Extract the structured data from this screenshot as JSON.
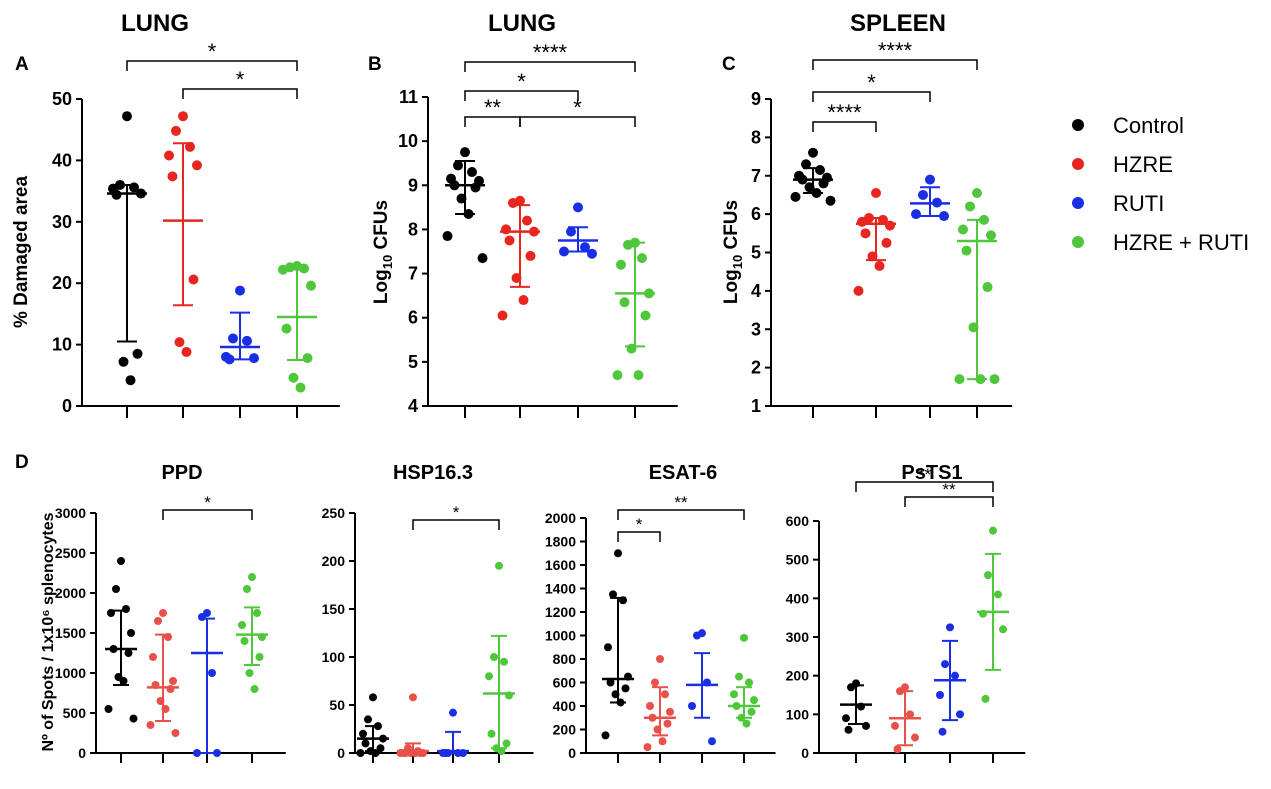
{
  "figure": {
    "panel_labels": [
      "A",
      "B",
      "C",
      "D"
    ]
  },
  "legend": [
    {
      "label": "Control",
      "color": "#000000"
    },
    {
      "label": "HZRE",
      "color": "#e8261f"
    },
    {
      "label": "RUTI",
      "color": "#1a2ee6"
    },
    {
      "label": "HZRE + RUTI",
      "color": "#4ec83a"
    }
  ],
  "chart_data": [
    {
      "id": "A",
      "type": "scatter",
      "title": "LUNG",
      "ylabel": "% Damaged area",
      "ylim": [
        0,
        50
      ],
      "yticks": [
        0,
        10,
        20,
        30,
        40,
        50
      ],
      "groups": [
        "Control",
        "HZRE",
        "RUTI",
        "HZRE + RUTI"
      ],
      "colors": [
        "#000000",
        "#e8261f",
        "#1a2ee6",
        "#4ec83a"
      ],
      "points": [
        [
          47.2,
          36.0,
          35.6,
          35.4,
          34.6,
          34.4,
          8.5,
          7.2,
          4.2
        ],
        [
          47.2,
          44.8,
          42.2,
          40.8,
          39.2,
          37.4,
          20.6,
          10.4,
          8.8
        ],
        [
          18.8,
          11.0,
          10.6,
          8.0,
          7.8,
          7.6
        ],
        [
          22.8,
          22.6,
          22.4,
          22.2,
          19.6,
          12.6,
          7.8,
          4.6,
          3.0
        ]
      ],
      "center": [
        34.6,
        30.2,
        9.6,
        14.5
      ],
      "err_low": [
        10.5,
        16.4,
        7.6,
        7.5
      ],
      "err_high": [
        36.0,
        42.8,
        15.2,
        22.4
      ],
      "sig": [
        {
          "from": 0,
          "to": 3,
          "label": "*",
          "level": 0
        },
        {
          "from": 1,
          "to": 3,
          "label": "*",
          "level": 1
        }
      ]
    },
    {
      "id": "B",
      "type": "scatter",
      "title": "LUNG",
      "ylabel": "Log10 CFUs",
      "ylim": [
        4,
        11
      ],
      "yticks": [
        4,
        5,
        6,
        7,
        8,
        9,
        10,
        11
      ],
      "groups": [
        "Control",
        "HZRE",
        "RUTI",
        "HZRE + RUTI"
      ],
      "colors": [
        "#000000",
        "#e8261f",
        "#1a2ee6",
        "#4ec83a"
      ],
      "points": [
        [
          9.75,
          9.45,
          9.3,
          9.15,
          9.1,
          9.0,
          8.95,
          8.7,
          8.35,
          7.85,
          7.35
        ],
        [
          8.65,
          8.6,
          8.2,
          8.0,
          7.95,
          7.75,
          7.4,
          6.9,
          6.4,
          6.05
        ],
        [
          8.5,
          7.95,
          7.6,
          7.5,
          7.45
        ],
        [
          7.7,
          7.65,
          7.35,
          7.2,
          6.55,
          6.35,
          6.05,
          5.3,
          4.7,
          4.7
        ]
      ],
      "center": [
        9.0,
        7.95,
        7.75,
        6.55
      ],
      "err_low": [
        8.35,
        6.7,
        7.5,
        5.35
      ],
      "err_high": [
        9.55,
        8.55,
        8.05,
        7.7
      ],
      "sig": [
        {
          "from": 0,
          "to": 1,
          "label": "**",
          "level": 0
        },
        {
          "from": 1,
          "to": 3,
          "label": "*",
          "level": 0
        },
        {
          "from": 0,
          "to": 2,
          "label": "*",
          "level": 1
        },
        {
          "from": 0,
          "to": 3,
          "label": "****",
          "level": 2
        }
      ]
    },
    {
      "id": "C",
      "type": "scatter",
      "title": "SPLEEN",
      "ylabel": "Log10 CFUs",
      "ylim": [
        1,
        9
      ],
      "yticks": [
        1,
        2,
        3,
        4,
        5,
        6,
        7,
        8,
        9
      ],
      "groups": [
        "Control",
        "HZRE",
        "RUTI",
        "HZRE + RUTI"
      ],
      "colors": [
        "#000000",
        "#e8261f",
        "#1a2ee6",
        "#4ec83a"
      ],
      "points": [
        [
          7.6,
          7.3,
          7.15,
          7.0,
          6.95,
          6.9,
          6.8,
          6.7,
          6.55,
          6.45,
          6.35
        ],
        [
          6.55,
          5.9,
          5.85,
          5.8,
          5.7,
          5.5,
          5.25,
          4.9,
          4.65,
          4.0
        ],
        [
          6.9,
          6.5,
          6.3,
          6.0,
          5.95
        ],
        [
          6.55,
          6.2,
          5.85,
          5.6,
          5.45,
          5.05,
          4.1,
          3.05,
          1.7,
          1.7,
          1.7
        ]
      ],
      "center": [
        6.9,
        5.75,
        6.28,
        5.3
      ],
      "err_low": [
        6.55,
        4.8,
        5.95,
        1.7
      ],
      "err_high": [
        7.2,
        5.9,
        6.7,
        5.85
      ],
      "sig": [
        {
          "from": 0,
          "to": 1,
          "label": "****",
          "level": 0
        },
        {
          "from": 0,
          "to": 2,
          "label": "*",
          "level": 1
        },
        {
          "from": 0,
          "to": 3,
          "label": "****",
          "level": 2
        }
      ]
    },
    {
      "id": "D1",
      "type": "scatter",
      "title": "PPD",
      "ylabel": "Nº of Spots / 1x10⁶ splenocytes",
      "ylim": [
        0,
        3000
      ],
      "yticks": [
        0,
        500,
        1000,
        1500,
        2000,
        2500,
        3000
      ],
      "groups": [
        "Control",
        "HZRE",
        "RUTI",
        "HZRE + RUTI"
      ],
      "colors": [
        "#000000",
        "#e8504a",
        "#1a2ee6",
        "#4ec83a"
      ],
      "points": [
        [
          2400,
          2050,
          1800,
          1750,
          1500,
          1300,
          1250,
          950,
          900,
          550,
          430
        ],
        [
          1750,
          1650,
          1450,
          1200,
          900,
          850,
          800,
          650,
          550,
          350,
          250
        ],
        [
          1750,
          1700,
          1000,
          0,
          0
        ],
        [
          2200,
          2050,
          1750,
          1600,
          1450,
          1400,
          1200,
          1000,
          800
        ]
      ],
      "center": [
        1300,
        820,
        1250,
        1480
      ],
      "err_low": [
        850,
        400,
        0,
        1100
      ],
      "err_high": [
        1780,
        1480,
        1680,
        1820
      ],
      "sig": [
        {
          "from": 1,
          "to": 3,
          "label": "*",
          "level": 0
        }
      ]
    },
    {
      "id": "D2",
      "type": "scatter",
      "title": "HSP16.3",
      "ylabel": "",
      "ylim": [
        0,
        250
      ],
      "yticks": [
        0,
        50,
        100,
        150,
        200,
        250
      ],
      "groups": [
        "Control",
        "HZRE",
        "RUTI",
        "HZRE + RUTI"
      ],
      "colors": [
        "#000000",
        "#e8504a",
        "#1a2ee6",
        "#4ec83a"
      ],
      "points": [
        [
          58,
          35,
          28,
          20,
          15,
          10,
          5,
          2,
          0,
          0
        ],
        [
          58,
          5,
          2,
          0,
          0,
          0,
          0,
          0,
          0,
          0
        ],
        [
          42,
          0,
          0,
          0,
          0,
          0
        ],
        [
          195,
          100,
          95,
          80,
          60,
          20,
          10,
          5,
          2
        ]
      ],
      "center": [
        15,
        2,
        2,
        62
      ],
      "err_low": [
        2,
        0,
        0,
        5
      ],
      "err_high": [
        28,
        10,
        22,
        122
      ],
      "sig": [
        {
          "from": 1,
          "to": 3,
          "label": "*",
          "level": 0
        }
      ]
    },
    {
      "id": "D3",
      "type": "scatter",
      "title": "ESAT-6",
      "ylabel": "",
      "ylim": [
        0,
        2000
      ],
      "yticks": [
        0,
        200,
        400,
        600,
        800,
        1000,
        1200,
        1400,
        1600,
        1800,
        2000
      ],
      "groups": [
        "Control",
        "HZRE",
        "RUTI",
        "HZRE + RUTI"
      ],
      "colors": [
        "#000000",
        "#e8504a",
        "#1a2ee6",
        "#4ec83a"
      ],
      "points": [
        [
          1700,
          1350,
          1300,
          900,
          650,
          600,
          550,
          500,
          430,
          150
        ],
        [
          800,
          600,
          500,
          400,
          350,
          300,
          250,
          200,
          100,
          50
        ],
        [
          1020,
          1000,
          600,
          400,
          100
        ],
        [
          980,
          650,
          600,
          500,
          450,
          400,
          350,
          300,
          250
        ]
      ],
      "center": [
        630,
        300,
        580,
        400
      ],
      "err_low": [
        430,
        150,
        300,
        300
      ],
      "err_high": [
        1320,
        560,
        850,
        560
      ],
      "sig": [
        {
          "from": 0,
          "to": 1,
          "label": "*",
          "level": 0
        },
        {
          "from": 0,
          "to": 3,
          "label": "**",
          "level": 1
        }
      ]
    },
    {
      "id": "D4",
      "type": "scatter",
      "title": "PsTS1",
      "ylabel": "",
      "ylim": [
        0,
        600
      ],
      "yticks": [
        0,
        100,
        200,
        300,
        400,
        500,
        600
      ],
      "groups": [
        "Control",
        "HZRE",
        "RUTI",
        "HZRE + RUTI"
      ],
      "colors": [
        "#000000",
        "#e8504a",
        "#1a2ee6",
        "#4ec83a"
      ],
      "points": [
        [
          180,
          170,
          120,
          90,
          70,
          60
        ],
        [
          170,
          160,
          100,
          70,
          40,
          10
        ],
        [
          325,
          230,
          200,
          150,
          100,
          55
        ],
        [
          575,
          460,
          410,
          360,
          320,
          140
        ]
      ],
      "center": [
        125,
        90,
        188,
        365
      ],
      "err_low": [
        75,
        20,
        85,
        215
      ],
      "err_high": [
        175,
        160,
        290,
        515
      ],
      "sig": [
        {
          "from": 1,
          "to": 3,
          "label": "**",
          "level": 0
        },
        {
          "from": 0,
          "to": 3,
          "label": "**",
          "level": 1
        }
      ]
    }
  ]
}
